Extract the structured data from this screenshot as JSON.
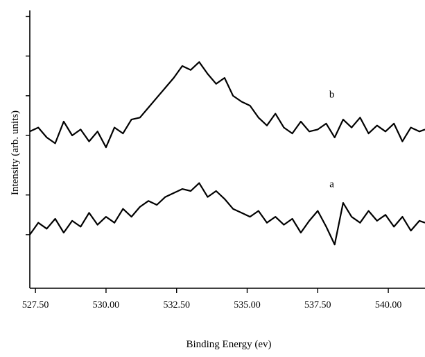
{
  "chart_data": {
    "type": "line",
    "title": "",
    "xlabel": "Binding Energy    (ev)",
    "ylabel": "Intensity    (arb. units)",
    "xlim": [
      527.3,
      541.3
    ],
    "ylim": [
      0,
      14
    ],
    "x_ticks": [
      527.5,
      530.0,
      532.5,
      535.0,
      537.5,
      540.0
    ],
    "x_tick_labels": [
      "527.50",
      "530.00",
      "532.50",
      "535.00",
      "537.50",
      "540.00"
    ],
    "y_ticks": [
      2.7,
      4.7,
      7.7,
      9.7,
      11.7,
      13.7
    ],
    "y_tick_labels": [],
    "grid": false,
    "series": [
      {
        "name": "b",
        "x": [
          527.3,
          527.6,
          527.9,
          528.2,
          528.5,
          528.8,
          529.1,
          529.4,
          529.7,
          530.0,
          530.3,
          530.6,
          530.9,
          531.2,
          531.5,
          531.8,
          532.1,
          532.4,
          532.7,
          533.0,
          533.3,
          533.6,
          533.9,
          534.2,
          534.5,
          534.8,
          535.1,
          535.4,
          535.7,
          536.0,
          536.3,
          536.6,
          536.9,
          537.2,
          537.5,
          537.8,
          538.1,
          538.4,
          538.7,
          539.0,
          539.3,
          539.6,
          539.9,
          540.2,
          540.5,
          540.8,
          541.1,
          541.3
        ],
        "y": [
          7.9,
          8.1,
          7.6,
          7.3,
          8.4,
          7.7,
          8.0,
          7.4,
          7.9,
          7.1,
          8.1,
          7.8,
          8.5,
          8.6,
          9.1,
          9.6,
          10.1,
          10.6,
          11.2,
          11.0,
          11.4,
          10.8,
          10.3,
          10.6,
          9.7,
          9.4,
          9.2,
          8.6,
          8.2,
          8.8,
          8.1,
          7.8,
          8.4,
          7.9,
          8.0,
          8.3,
          7.6,
          8.5,
          8.1,
          8.6,
          7.8,
          8.2,
          7.9,
          8.3,
          7.4,
          8.1,
          7.9,
          8.0
        ]
      },
      {
        "name": "a",
        "x": [
          527.3,
          527.6,
          527.9,
          528.2,
          528.5,
          528.8,
          529.1,
          529.4,
          529.7,
          530.0,
          530.3,
          530.6,
          530.9,
          531.2,
          531.5,
          531.8,
          532.1,
          532.4,
          532.7,
          533.0,
          533.3,
          533.6,
          533.9,
          534.2,
          534.5,
          534.8,
          535.1,
          535.4,
          535.7,
          536.0,
          536.3,
          536.6,
          536.9,
          537.2,
          537.5,
          537.8,
          538.1,
          538.4,
          538.7,
          539.0,
          539.3,
          539.6,
          539.9,
          540.2,
          540.5,
          540.8,
          541.1,
          541.3
        ],
        "y": [
          2.7,
          3.3,
          3.0,
          3.5,
          2.8,
          3.4,
          3.1,
          3.8,
          3.2,
          3.6,
          3.3,
          4.0,
          3.6,
          4.1,
          4.4,
          4.2,
          4.6,
          4.8,
          5.0,
          4.9,
          5.3,
          4.6,
          4.9,
          4.5,
          4.0,
          3.8,
          3.6,
          3.9,
          3.3,
          3.6,
          3.2,
          3.5,
          2.8,
          3.4,
          3.9,
          3.1,
          2.2,
          4.3,
          3.6,
          3.3,
          3.9,
          3.4,
          3.7,
          3.1,
          3.6,
          2.9,
          3.4,
          3.3
        ]
      }
    ],
    "annotations": [
      {
        "text": "b",
        "x": 538.0,
        "y": 9.6
      },
      {
        "text": "a",
        "x": 538.0,
        "y": 5.1
      }
    ]
  }
}
